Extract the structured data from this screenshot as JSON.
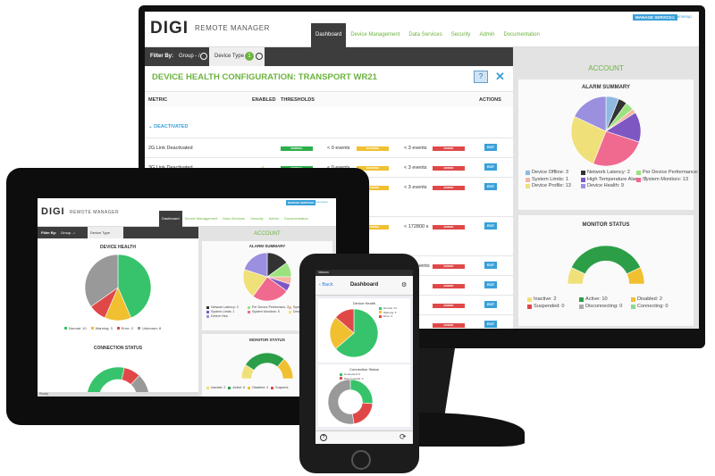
{
  "brand": {
    "logo": "DIGI",
    "product": "REMOTE MANAGER"
  },
  "header": {
    "manage_services": "MANAGE SERVICES",
    "user": "dreamsetup"
  },
  "nav_tabs": [
    {
      "label": "Dashboard",
      "active": true
    },
    {
      "label": "Device Management",
      "active": false
    },
    {
      "label": "Data Services",
      "active": false
    },
    {
      "label": "Security",
      "active": false
    },
    {
      "label": "Admin",
      "active": false
    },
    {
      "label": "Documentation",
      "active": false
    }
  ],
  "filter": {
    "label": "Filter By:",
    "group": "Group - /",
    "device_type": "Device Type",
    "device_type_count": "1"
  },
  "config_panel": {
    "title": "DEVICE HEALTH CONFIGURATION: TRANSPORT WR21",
    "help_icon": "question-icon",
    "close_icon": "close-icon",
    "columns": {
      "metric": "METRIC",
      "enabled": "ENABLED",
      "thresholds": "THRESHOLDS",
      "actions": "ACTIONS"
    },
    "section": "DEACTIVATED",
    "threshold_labels": {
      "normal": "NORMAL",
      "warning": "WARNING",
      "error": "ERROR",
      "edit": "EDIT"
    },
    "rows": [
      {
        "metric": "2G Link Deactivated",
        "enabled": "",
        "t1": "< 0 events",
        "t2": "< 3 events"
      },
      {
        "metric": "3G Link Deactivated",
        "enabled": "✓",
        "t1": "< 0 events",
        "t2": "< 3 events"
      },
      {
        "metric": "",
        "enabled": "",
        "t1": "< 0 events",
        "t2": "< 3 events"
      },
      {
        "metric": "",
        "enabled": "",
        "t1": "",
        "t2": "< 172800 s"
      },
      {
        "metric": "",
        "enabled": "",
        "t1": "",
        "t2": "< 25 events"
      },
      {
        "metric": "",
        "enabled": "",
        "t1": "",
        "t2": ""
      },
      {
        "metric": "",
        "enabled": "",
        "t1": "",
        "t2": ""
      },
      {
        "metric": "",
        "enabled": "",
        "t1": "",
        "t2": ""
      }
    ]
  },
  "account": {
    "title": "ACCOUNT",
    "alarm_summary_title": "ALARM SUMMARY",
    "alarm_legend": [
      {
        "label": "Device Offline: 3",
        "color": "#8fb9e0"
      },
      {
        "label": "Network Latency: 2",
        "color": "#333333"
      },
      {
        "label": "Per Device Performance: 2",
        "color": "#9be27f"
      },
      {
        "label": "System Limits: 1",
        "color": "#f6b5a3"
      },
      {
        "label": "High Temperature Alarm: 7",
        "color": "#7e57c2"
      },
      {
        "label": "System Monitors: 13",
        "color": "#f06a8f"
      },
      {
        "label": "Device Profile: 13",
        "color": "#f0e07a"
      },
      {
        "label": "Device Health: 9",
        "color": "#9b8fe0"
      }
    ],
    "monitor_status_title": "MONITOR STATUS",
    "monitor_legend": [
      {
        "label": "Inactive: 2",
        "color": "#f0e07a"
      },
      {
        "label": "Active: 10",
        "color": "#2d9e48"
      },
      {
        "label": "Disabled: 2",
        "color": "#f0c030"
      },
      {
        "label": "Suspended: 0",
        "color": "#e04848"
      },
      {
        "label": "Disconnecting: 0",
        "color": "#aaaaaa"
      },
      {
        "label": "Connecting: 0",
        "color": "#8fd88f"
      }
    ]
  },
  "tablet": {
    "device_health_title": "DEVICE HEALTH",
    "device_health_legend": [
      {
        "label": "Normal: 10",
        "color": "#37c36b"
      },
      {
        "label": "Warning: 3",
        "color": "#f0c030"
      },
      {
        "label": "Error: 2",
        "color": "#e04848"
      },
      {
        "label": "Unknown: 8",
        "color": "#999999"
      }
    ],
    "connection_status_title": "CONNECTION STATUS",
    "connection_legend": [
      {
        "label": "Connected: 13",
        "color": "#37c36b"
      },
      {
        "label": "Disconnected: 4",
        "color": "#e04848"
      },
      {
        "label": "Never Connected: 6",
        "color": "#999999"
      }
    ],
    "account_title": "ACCOUNT",
    "alarm_summary_title": "ALARM SUMMARY",
    "alarm_legend": [
      {
        "label": "Network Latency: 3",
        "color": "#333333"
      },
      {
        "label": "Per Device Performanc: 2",
        "color": "#9be27f"
      },
      {
        "label": "System Thresholds: 1",
        "color": "#f6b5a3"
      },
      {
        "label": "System Limits: 1",
        "color": "#7e57c2"
      },
      {
        "label": "System Monitors: 5",
        "color": "#f06a8f"
      },
      {
        "label": "Device Profile: 4",
        "color": "#f0e07a"
      },
      {
        "label": "Device Hea",
        "color": "#9b8fe0"
      }
    ],
    "monitor_status_title": "MONITOR STATUS",
    "monitor_legend": [
      {
        "label": "Inactive: 2",
        "color": "#f0e07a"
      },
      {
        "label": "Active: 6",
        "color": "#2d9e48"
      },
      {
        "label": "Disabled: 3",
        "color": "#f0c030"
      },
      {
        "label": "Suspend",
        "color": "#e04848"
      }
    ],
    "footer": "Ready"
  },
  "phone": {
    "status_bar": "Verizon",
    "back": "Back",
    "title": "Dashboard",
    "device_health_title": "Device Health",
    "device_health_legend": [
      {
        "label": "Normal: 14",
        "color": "#37c36b"
      },
      {
        "label": "Warning: 5",
        "color": "#f0c030"
      },
      {
        "label": "Error: 3",
        "color": "#e04848"
      }
    ],
    "connection_status_title": "Connection Status",
    "connection_legend": [
      {
        "label": "Connected: 5",
        "color": "#37c36b"
      },
      {
        "label": "Disconnected: 4",
        "color": "#e04848"
      },
      {
        "label": "Never: 10",
        "color": "#999999"
      }
    ]
  },
  "chart_data": [
    {
      "type": "pie",
      "title": "ALARM SUMMARY",
      "categories": [
        "Device Offline",
        "Network Latency",
        "Per Device Performance",
        "System Limits",
        "High Temperature Alarm",
        "System Monitors",
        "Device Profile",
        "Device Health"
      ],
      "values": [
        3,
        2,
        2,
        1,
        7,
        13,
        13,
        9
      ]
    },
    {
      "type": "pie",
      "title": "MONITOR STATUS",
      "categories": [
        "Inactive",
        "Active",
        "Disabled",
        "Suspended",
        "Disconnecting",
        "Connecting"
      ],
      "values": [
        2,
        10,
        2,
        0,
        0,
        0
      ]
    },
    {
      "type": "pie",
      "title": "DEVICE HEALTH",
      "categories": [
        "Normal",
        "Warning",
        "Error",
        "Unknown"
      ],
      "values": [
        10,
        3,
        2,
        8
      ]
    },
    {
      "type": "pie",
      "title": "CONNECTION STATUS",
      "categories": [
        "Connected",
        "Disconnected",
        "Never Connected"
      ],
      "values": [
        13,
        4,
        6
      ]
    },
    {
      "type": "pie",
      "title": "ALARM SUMMARY",
      "categories": [
        "Network Latency",
        "Per Device Performanc",
        "System Thresholds",
        "System Limits",
        "System Monitors",
        "Device Profile",
        "Device Hea"
      ],
      "values": [
        3,
        2,
        1,
        1,
        5,
        4,
        4
      ]
    },
    {
      "type": "pie",
      "title": "MONITOR STATUS",
      "categories": [
        "Inactive",
        "Active",
        "Disabled",
        "Suspend"
      ],
      "values": [
        2,
        6,
        3,
        0
      ]
    },
    {
      "type": "pie",
      "title": "Device Health",
      "categories": [
        "Normal",
        "Warning",
        "Error"
      ],
      "values": [
        14,
        5,
        3
      ]
    },
    {
      "type": "pie",
      "title": "Connection Status",
      "categories": [
        "Connected",
        "Disconnected",
        "Never"
      ],
      "values": [
        5,
        4,
        10
      ]
    }
  ]
}
